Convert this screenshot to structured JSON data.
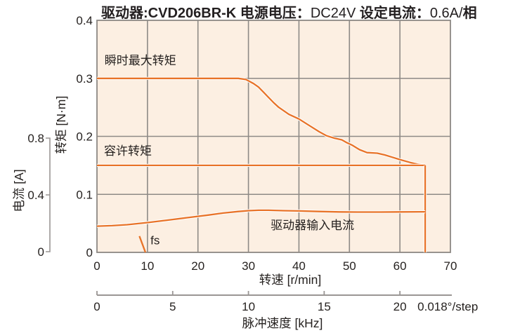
{
  "title": {
    "full_text": "驱动器:CVD206BR-K 电源电压：DC24V 设定电流：0.6A/相",
    "segments": [
      {
        "text": "驱动器:CVD206BR-K",
        "bold": true
      },
      {
        "text": " 电源电压：",
        "bold": true
      },
      {
        "text": "DC24V",
        "bold": false
      },
      {
        "text": " 设定电流：",
        "bold": true
      },
      {
        "text": "0.6A/",
        "bold": false
      },
      {
        "text": "相",
        "bold": true
      }
    ]
  },
  "colors": {
    "accent_orange": "#E87328",
    "plot_bg": "#FCEFE2",
    "grid": "#8E8A86",
    "border": "#8C8884",
    "axis_gray": "#9A9694",
    "text": "#262220",
    "casing": "#FFFFFF"
  },
  "chart_data": {
    "type": "line",
    "title": "驱动器:CVD206BR-K 电源电压：DC24V 设定电流：0.6A/相",
    "x_axis": {
      "label": "转速 [r/min]",
      "min": 0,
      "max": 70,
      "ticks": [
        0,
        10,
        20,
        30,
        40,
        50,
        60,
        70
      ],
      "grid": true
    },
    "y_axis": {
      "label": "转矩 [N·m]",
      "min": 0,
      "max": 0.4,
      "ticks": [
        0.4,
        0.3,
        0.2,
        0.1,
        0
      ],
      "tick_labels": [
        "0.4",
        "0.3",
        "0.2",
        "0.1",
        "0"
      ],
      "grid": true
    },
    "y2_axis": {
      "label": "电流 [A]",
      "min": 0,
      "max": 0.8,
      "ticks": [
        0.8,
        0.4,
        0
      ],
      "tick_labels": [
        "0.8",
        "0.4",
        "0"
      ]
    },
    "x2_axis": {
      "label": "脉冲速度 [kHz]",
      "ticks": [
        0,
        5,
        10,
        15,
        20
      ],
      "r_min_per_kHz": 3,
      "max_kHz": 23.33,
      "unit_note": "0.018°/step"
    },
    "series": [
      {
        "id": "instantaneous-max-torque",
        "name": "瞬时最大转矩",
        "axis": "torque",
        "casing": true,
        "points": [
          [
            0,
            0.3
          ],
          [
            28,
            0.3
          ],
          [
            29.5,
            0.298
          ],
          [
            31,
            0.291
          ],
          [
            32,
            0.285
          ],
          [
            33,
            0.276
          ],
          [
            34,
            0.267
          ],
          [
            35,
            0.258
          ],
          [
            36,
            0.25
          ],
          [
            37,
            0.244
          ],
          [
            38,
            0.238
          ],
          [
            40,
            0.23
          ],
          [
            42,
            0.219
          ],
          [
            44,
            0.208
          ],
          [
            45.5,
            0.201
          ],
          [
            47,
            0.197
          ],
          [
            48.5,
            0.194
          ],
          [
            49.5,
            0.189
          ],
          [
            50.5,
            0.185
          ],
          [
            52,
            0.177
          ],
          [
            53.5,
            0.172
          ],
          [
            55.5,
            0.171
          ],
          [
            57,
            0.168
          ],
          [
            58.5,
            0.164
          ],
          [
            60,
            0.16
          ],
          [
            62,
            0.155
          ],
          [
            63.5,
            0.152
          ],
          [
            65,
            0.15
          ]
        ]
      },
      {
        "id": "permissible-torque",
        "name": "容许转矩",
        "axis": "torque",
        "casing": true,
        "points": [
          [
            0,
            0.15
          ],
          [
            65,
            0.15
          ]
        ]
      },
      {
        "id": "cutoff-line",
        "name": "",
        "axis": "torque",
        "casing": true,
        "points": [
          [
            65,
            0.15
          ],
          [
            65,
            0
          ]
        ]
      },
      {
        "id": "driver-input-current",
        "name": "驱动器输入电流",
        "axis": "current",
        "casing": true,
        "points": [
          [
            0,
            0.18
          ],
          [
            3,
            0.183
          ],
          [
            6,
            0.19
          ],
          [
            10,
            0.205
          ],
          [
            14,
            0.222
          ],
          [
            18,
            0.24
          ],
          [
            22,
            0.258
          ],
          [
            25,
            0.272
          ],
          [
            28,
            0.283
          ],
          [
            30,
            0.289
          ],
          [
            32,
            0.292
          ],
          [
            34,
            0.292
          ],
          [
            37,
            0.289
          ],
          [
            40,
            0.287
          ],
          [
            44,
            0.283
          ],
          [
            48,
            0.28
          ],
          [
            52,
            0.279
          ],
          [
            56,
            0.279
          ],
          [
            60,
            0.28
          ],
          [
            65,
            0.281
          ]
        ]
      },
      {
        "id": "fs-start-frequency",
        "name": "fs",
        "axis": "torque",
        "casing": false,
        "points": [
          [
            8.4,
            0.028
          ],
          [
            9.6,
            0
          ]
        ]
      }
    ],
    "annotations": [
      {
        "id": "instantaneous-max-torque",
        "text": "瞬时最大转矩",
        "x": 1.5,
        "y": 0.324
      },
      {
        "id": "permissible-torque",
        "text": "容许转矩",
        "x": 1.4,
        "y": 0.168
      },
      {
        "id": "driver-input-current",
        "text": "驱动器输入电流",
        "x": 34.4,
        "y": 0.04
      },
      {
        "id": "fs",
        "text": "fs",
        "x": 10.6,
        "y": 0.014
      }
    ]
  }
}
